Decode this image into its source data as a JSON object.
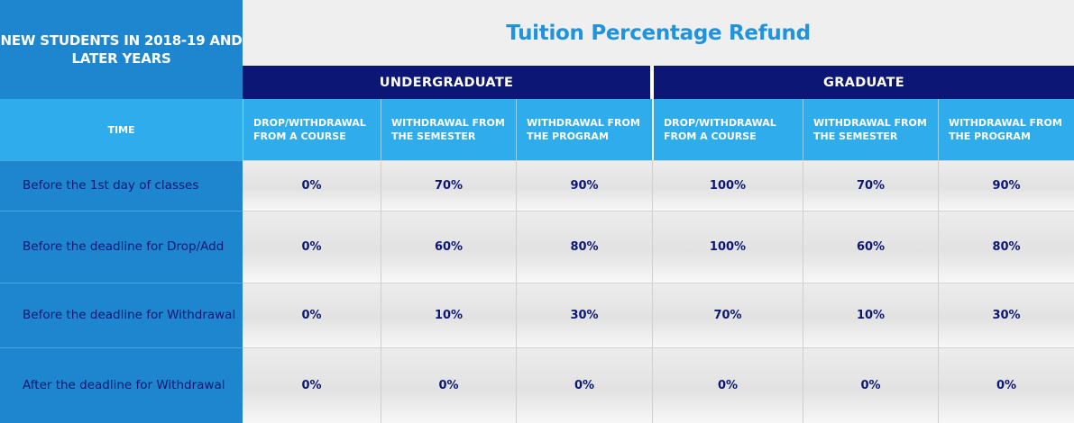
{
  "header": {
    "corner_label": "NEW STUDENTS IN 2018-19 AND LATER YEARS",
    "title": "Tuition Percentage Refund",
    "groups": [
      "UNDERGRADUATE",
      "GRADUATE"
    ],
    "time_label": "TIME",
    "columns": [
      "DROP/WITHDRAWAL FROM A COURSE",
      "WITHDRAWAL FROM THE SEMESTER",
      "WITHDRAWAL FROM THE PROGRAM",
      "DROP/WITHDRAWAL FROM A COURSE",
      "WITHDRAWAL FROM THE SEMESTER",
      "WITHDRAWAL FROM THE PROGRAM"
    ]
  },
  "rows": [
    {
      "label": "Before the 1st day of classes",
      "values": [
        "0%",
        "70%",
        "90%",
        "100%",
        "70%",
        "90%"
      ]
    },
    {
      "label": "Before the deadline for Drop/Add",
      "values": [
        "0%",
        "60%",
        "80%",
        "100%",
        "60%",
        "80%"
      ]
    },
    {
      "label": "Before the deadline for Withdrawal",
      "values": [
        "0%",
        "10%",
        "30%",
        "70%",
        "10%",
        "30%"
      ]
    },
    {
      "label": "After the deadline for Withdrawal",
      "values": [
        "0%",
        "0%",
        "0%",
        "0%",
        "0%",
        "0%"
      ]
    }
  ],
  "colors": {
    "corner_blue": "#1e86cf",
    "navy": "#0c1675",
    "light_blue": "#2eacec",
    "title_blue": "#1f93dc",
    "cell_gray": "#e6e6e6"
  }
}
